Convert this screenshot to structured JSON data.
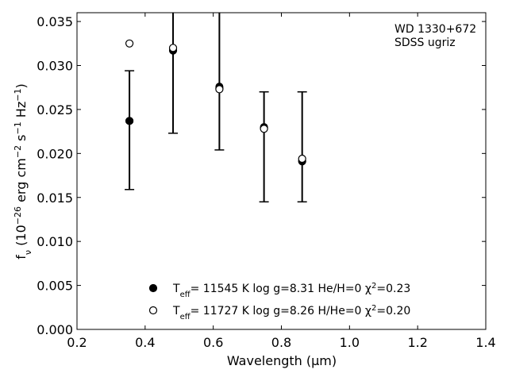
{
  "chart_data": {
    "type": "scatter",
    "xlabel": "Wavelength (μm)",
    "xlim": [
      0.2,
      1.4
    ],
    "ylim": [
      0.0,
      0.036
    ],
    "x_ticks": [
      "0.2",
      "0.4",
      "0.6",
      "0.8",
      "1.0",
      "1.2",
      "1.4"
    ],
    "y_ticks": [
      "0.000",
      "0.005",
      "0.010",
      "0.015",
      "0.020",
      "0.025",
      "0.030",
      "0.035"
    ],
    "annotation": [
      "WD 1330+672",
      "SDSS ugriz"
    ],
    "observed": {
      "x": [
        0.354,
        0.482,
        0.618,
        0.749,
        0.861
      ],
      "y": [
        0.0237,
        0.0319,
        0.0276,
        0.023,
        0.0192
      ],
      "yerr_low": [
        0.0159,
        0.0223,
        0.0204,
        0.0145,
        0.0145
      ],
      "yerr_high": [
        0.0294,
        0.036,
        0.036,
        0.027,
        0.027
      ]
    },
    "series": [
      {
        "marker": "filled-circle",
        "legend": {
          "t": "T",
          "sub": "eff",
          "rest": "= 11545 K  log g=8.31  He/H=0  χ",
          "sup": "2",
          "tail": "=0.23"
        },
        "x": [
          0.354,
          0.482,
          0.618,
          0.749,
          0.861
        ],
        "y": [
          0.0237,
          0.0317,
          0.0274,
          0.0229,
          0.0191
        ]
      },
      {
        "marker": "open-circle",
        "legend": {
          "t": "T",
          "sub": "eff",
          "rest": "= 11727 K  log g=8.26  H/He=0  χ",
          "sup": "2",
          "tail": "=0.20"
        },
        "x": [
          0.354,
          0.482,
          0.618,
          0.749,
          0.861
        ],
        "y": [
          0.0325,
          0.032,
          0.0273,
          0.0228,
          0.0194
        ]
      }
    ],
    "colors": {
      "marker": "#000000",
      "axes": "#000000",
      "background": "#ffffff"
    }
  }
}
